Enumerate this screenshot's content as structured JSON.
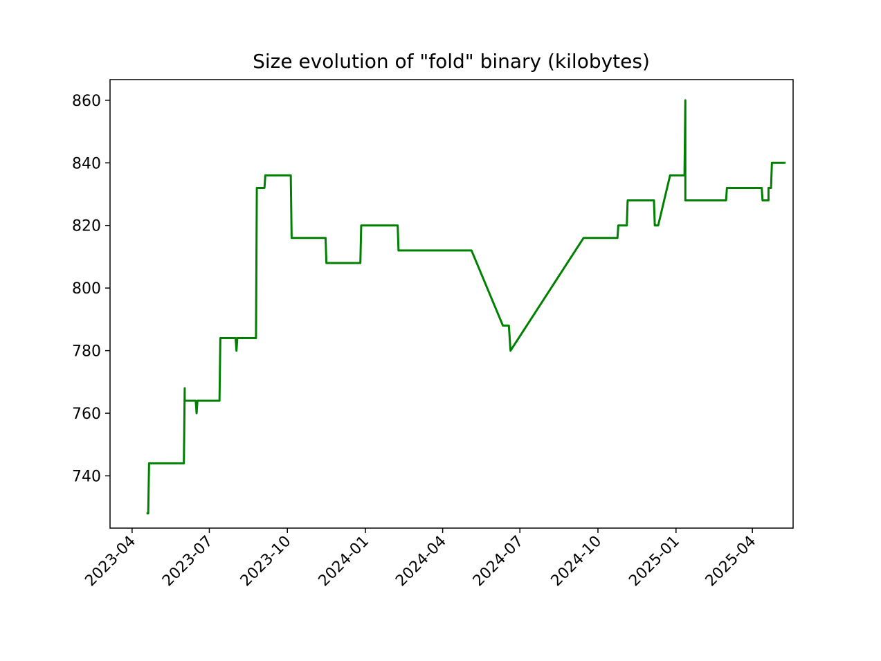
{
  "chart_data": {
    "type": "line",
    "title": "Size evolution of \"fold\" binary (kilobytes)",
    "xlabel": "",
    "ylabel": "",
    "x_axis_type": "date",
    "xlim": [
      "2023-03-06",
      "2025-05-19"
    ],
    "ylim": [
      723.3,
      866.6
    ],
    "grid": false,
    "legend": "none",
    "line_color": "#008000",
    "x_ticks": [
      "2023-04-01",
      "2023-07-01",
      "2023-10-01",
      "2024-01-01",
      "2024-04-01",
      "2024-07-01",
      "2024-10-01",
      "2025-01-01",
      "2025-04-01"
    ],
    "x_tick_labels": [
      "2023-04",
      "2023-07",
      "2023-10",
      "2024-01",
      "2024-04",
      "2024-07",
      "2024-10",
      "2025-01",
      "2025-04"
    ],
    "y_ticks": [
      740,
      760,
      780,
      800,
      820,
      840,
      860
    ],
    "y_tick_labels": [
      "740",
      "760",
      "780",
      "800",
      "820",
      "840",
      "860"
    ],
    "series": [
      {
        "x": [
          "2023-04-18",
          "2023-04-20",
          "2023-04-21",
          "2023-06-01",
          "2023-06-02",
          "2023-06-02",
          "2023-06-03",
          "2023-06-15",
          "2023-06-16",
          "2023-06-17",
          "2023-07-13",
          "2023-07-14",
          "2023-08-01",
          "2023-08-02",
          "2023-08-03",
          "2023-08-04",
          "2023-08-25",
          "2023-08-26",
          "2023-09-04",
          "2023-09-05",
          "2023-10-05",
          "2023-10-06",
          "2023-11-15",
          "2023-11-16",
          "2023-12-26",
          "2023-12-27",
          "2024-02-08",
          "2024-02-09",
          "2024-05-05",
          "2024-06-11",
          "2024-06-18",
          "2024-06-20",
          "2024-09-14",
          "2024-09-15",
          "2024-10-24",
          "2024-10-25",
          "2024-11-04",
          "2024-11-05",
          "2024-12-06",
          "2024-12-07",
          "2024-12-11",
          "2024-12-25",
          "2025-01-11",
          "2025-01-12",
          "2025-01-12",
          "2025-03-01",
          "2025-03-02",
          "2025-03-03",
          "2025-04-12",
          "2025-04-13",
          "2025-04-20",
          "2025-04-20",
          "2025-04-23",
          "2025-04-24",
          "2025-05-10"
        ],
        "values": [
          728,
          728,
          744,
          744,
          768,
          764,
          764,
          764,
          760,
          764,
          764,
          784,
          784,
          780,
          784,
          784,
          784,
          832,
          832,
          836,
          836,
          816,
          816,
          808,
          808,
          820,
          820,
          812,
          812,
          788,
          788,
          780,
          816,
          816,
          816,
          820,
          820,
          828,
          828,
          820,
          820,
          836,
          836,
          860,
          828,
          828,
          832,
          832,
          832,
          828,
          828,
          832,
          832,
          840,
          840
        ]
      }
    ]
  }
}
